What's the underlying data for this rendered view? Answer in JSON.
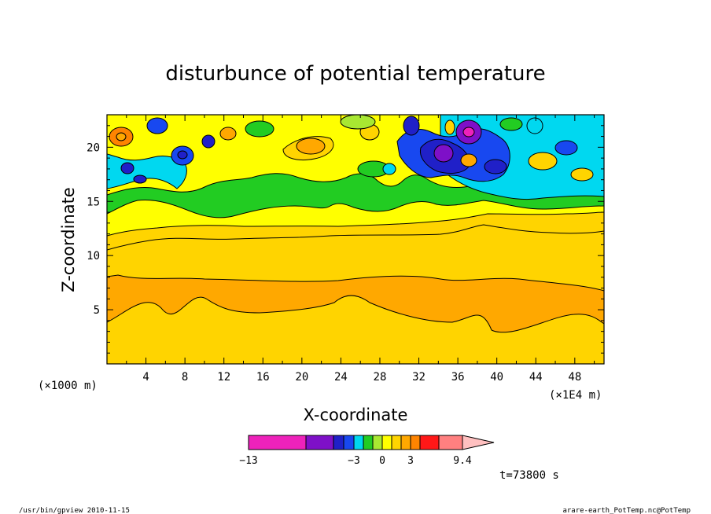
{
  "chart_data": {
    "type": "heatmap",
    "title": "disturbunce of potential temperature",
    "xlabel": "X-coordinate",
    "ylabel": "Z-coordinate",
    "x_unit_left": "(×1000 m)",
    "x_unit_right": "(×1E4 m)",
    "xlim": [
      0,
      51
    ],
    "ylim": [
      0,
      23
    ],
    "x_ticks": [
      4,
      8,
      12,
      16,
      20,
      24,
      28,
      32,
      36,
      40,
      44,
      48
    ],
    "y_ticks": [
      5,
      10,
      15,
      20
    ],
    "colorbar": {
      "tick_labels": [
        {
          "value": -13,
          "label": "−13"
        },
        {
          "value": -3,
          "label": "−3"
        },
        {
          "value": 0,
          "label": "0"
        },
        {
          "value": 3,
          "label": "3"
        },
        {
          "value": 9.4,
          "label": "9.4"
        }
      ],
      "levels": [
        -13,
        -8,
        -6,
        -4,
        -3,
        -2,
        -1,
        0,
        1,
        2,
        3,
        4,
        5,
        7,
        9,
        11
      ],
      "colors": [
        "#ee22bb",
        "#7e10c8",
        "#2020c8",
        "#1848f0",
        "#00d8f0",
        "#22cc22",
        "#a8e832",
        "#ffff00",
        "#ffd400",
        "#ffa800",
        "#ff8400",
        "#ff1818",
        "#ff8080",
        "#ffc0c0"
      ]
    },
    "field_bands": [
      {
        "z_range": [
          0,
          3.5
        ],
        "value": 1.5
      },
      {
        "z_range": [
          3.5,
          8.5
        ],
        "value": 2.5
      },
      {
        "z_range": [
          8.5,
          11
        ],
        "value": 1.5
      },
      {
        "z_range": [
          11,
          14
        ],
        "value": 0.5
      },
      {
        "z_range": [
          14,
          17
        ],
        "value": -0.5
      },
      {
        "z_range": [
          17,
          23
        ],
        "value": "mixed -13 to 9"
      }
    ],
    "anomalies": [
      {
        "x": 37,
        "z": 21.5,
        "value": -9
      },
      {
        "x": 34.5,
        "z": 19.5,
        "value": -9
      },
      {
        "x": 40,
        "z": 18.5,
        "value": -4
      },
      {
        "x": 33,
        "z": 21,
        "value": -4
      },
      {
        "x": 8,
        "z": 19.5,
        "value": -4
      },
      {
        "x": 5,
        "z": 21.5,
        "value": -4
      },
      {
        "x": 2,
        "z": 21,
        "value": 3
      },
      {
        "x": 21,
        "z": 20,
        "value": 2
      }
    ]
  },
  "annotations": {
    "time": "t=73800 s",
    "footer_left": "/usr/bin/gpview   2010-11-15",
    "footer_right": "arare-earth_PotTemp.nc@PotTemp"
  }
}
